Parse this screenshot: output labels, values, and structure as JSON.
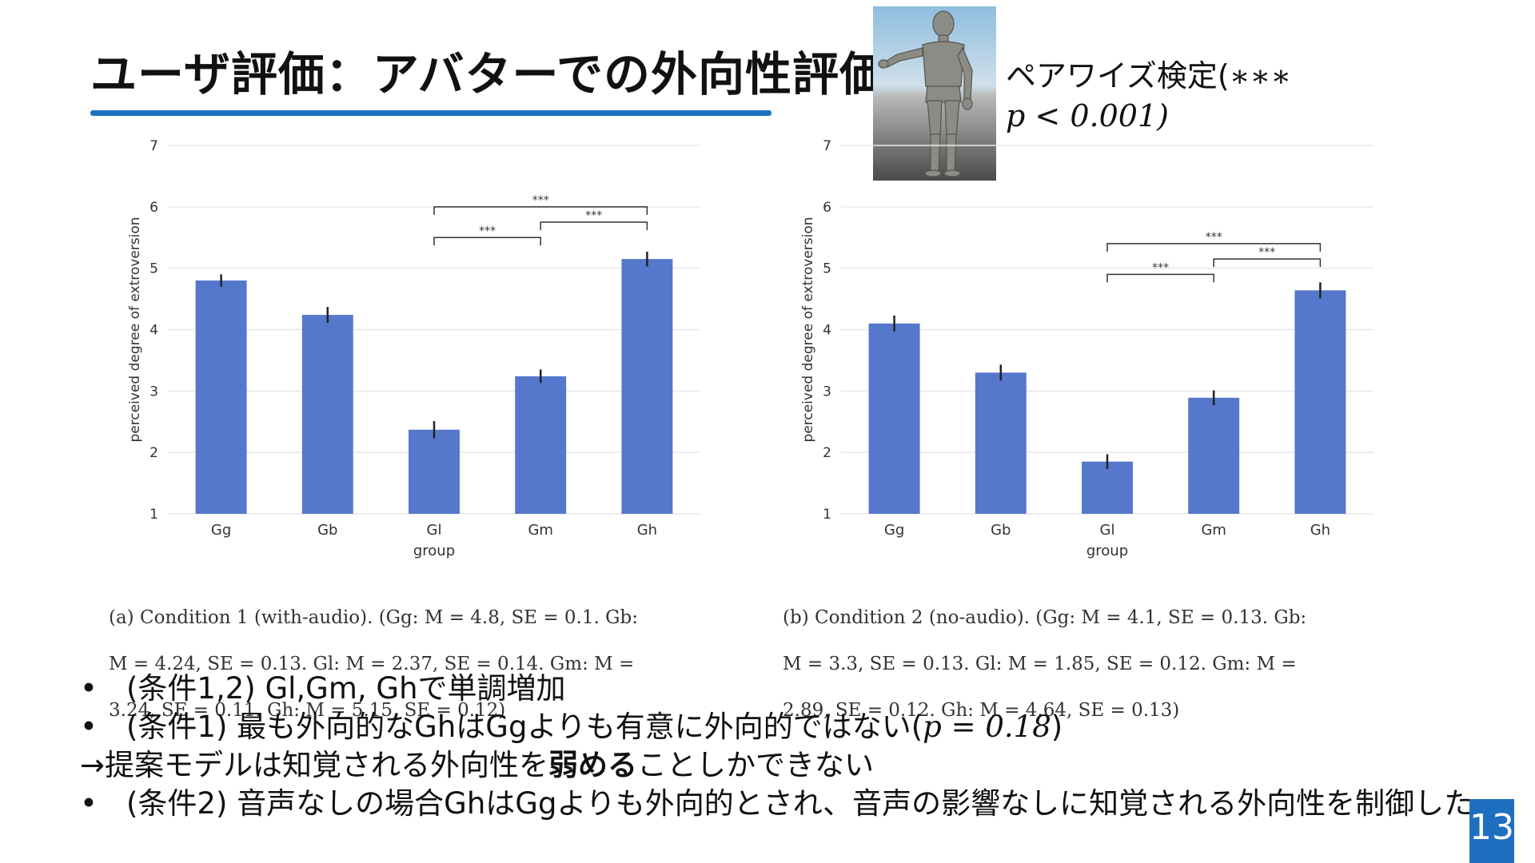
{
  "slide": {
    "title": "ユーザ評価：アバターでの外向性評価",
    "note_line1": "ペアワイズ検定(",
    "note_line1_math": "∗∗∗",
    "note_line2_math": "p  <  0.001)",
    "page_number": "13",
    "colors": {
      "accent": "#1f6fc0",
      "bar": "#5577cc"
    },
    "avatar_icon": "humanoid-avatar"
  },
  "chart_data": [
    {
      "type": "bar",
      "title": "",
      "xlabel": "group",
      "ylabel": "perceived degree of extroversion",
      "ylim": [
        1,
        7
      ],
      "yticks": [
        "1",
        "2",
        "3",
        "4",
        "5",
        "6",
        "7"
      ],
      "categories": [
        "Gg",
        "Gb",
        "Gl",
        "Gm",
        "Gh"
      ],
      "values": [
        4.8,
        4.24,
        2.37,
        3.24,
        5.15
      ],
      "errors": [
        0.1,
        0.13,
        0.14,
        0.11,
        0.12
      ],
      "grid": true,
      "significance": [
        {
          "from": 2,
          "to": 4,
          "label": "***",
          "level": 6.0
        },
        {
          "from": 3,
          "to": 4,
          "label": "***",
          "level": 5.75
        },
        {
          "from": 2,
          "to": 3,
          "label": "***",
          "level": 5.5
        }
      ],
      "caption_lines": [
        "(a) Condition 1 (with-audio). (Gg: M = 4.8, SE = 0.1. Gb:",
        "M = 4.24, SE = 0.13. Gl: M = 2.37, SE = 0.14. Gm: M =",
        "3.24, SE = 0.11. Gh: M = 5.15, SE = 0.12)"
      ]
    },
    {
      "type": "bar",
      "title": "",
      "xlabel": "group",
      "ylabel": "perceived degree of extroversion",
      "ylim": [
        1,
        7
      ],
      "yticks": [
        "1",
        "2",
        "3",
        "4",
        "5",
        "6",
        "7"
      ],
      "categories": [
        "Gg",
        "Gb",
        "Gl",
        "Gm",
        "Gh"
      ],
      "values": [
        4.1,
        3.3,
        1.85,
        2.89,
        4.64
      ],
      "errors": [
        0.13,
        0.13,
        0.12,
        0.12,
        0.13
      ],
      "grid": true,
      "significance": [
        {
          "from": 2,
          "to": 4,
          "label": "***",
          "level": 5.4
        },
        {
          "from": 3,
          "to": 4,
          "label": "***",
          "level": 5.15
        },
        {
          "from": 2,
          "to": 3,
          "label": "***",
          "level": 4.9
        }
      ],
      "caption_lines": [
        "(b) Condition 2 (no-audio). (Gg: M = 4.1, SE = 0.13. Gb:",
        "M = 3.3, SE = 0.13. Gl: M = 1.85, SE = 0.12. Gm: M =",
        "2.89, SE = 0.12. Gh: M = 4.64, SE = 0.13)"
      ]
    }
  ],
  "bullets": {
    "b1": "(条件1,2) Gl,Gm, Ghで単調増加",
    "b2_text": "(条件1) 最も外向的なGhはGgよりも有意に外向的ではない(",
    "b2_math": "p = 0.18",
    "b2_end": ")",
    "arrow_pre": "→提案モデルは知覚される外向性を",
    "arrow_bold": "弱める",
    "arrow_post": "ことしかできない",
    "b3": "(条件2) 音声なしの場合GhはGgよりも外向的とされ、音声の影響なしに知覚される外向性を制御した",
    "dot": "•"
  }
}
